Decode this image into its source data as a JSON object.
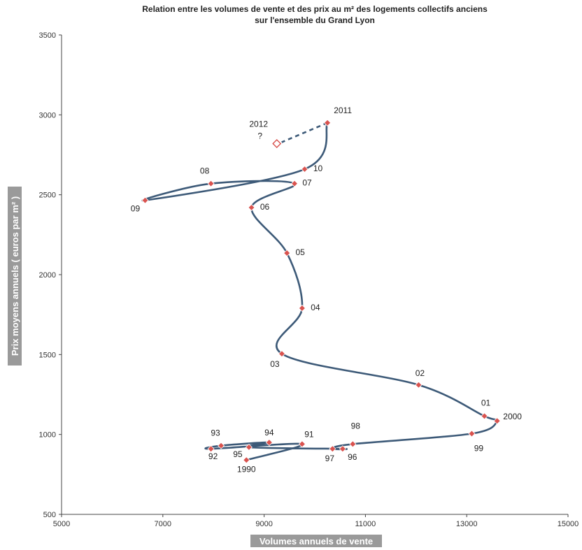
{
  "chart_data": {
    "type": "scatter",
    "title_lines": [
      "Relation entre les volumes de vente et des prix au m² des logements collectifs anciens",
      "sur l'ensemble du Grand Lyon"
    ],
    "xlabel": "Volumes annuels de vente",
    "ylabel": "Prix moyens annuels ( euros par m² )",
    "xlim": [
      5000,
      15000
    ],
    "ylim": [
      500,
      3500
    ],
    "x_ticks": [
      5000,
      7000,
      9000,
      11000,
      13000,
      15000
    ],
    "y_ticks": [
      500,
      1000,
      1500,
      2000,
      2500,
      3000,
      3500
    ],
    "grid": false,
    "series": [
      {
        "points": [
          {
            "label": "1990",
            "x": 8650,
            "y": 840
          },
          {
            "label": "91",
            "x": 9750,
            "y": 940
          },
          {
            "label": "92",
            "x": 7950,
            "y": 910
          },
          {
            "label": "93",
            "x": 8150,
            "y": 930
          },
          {
            "label": "94",
            "x": 9100,
            "y": 950
          },
          {
            "label": "95",
            "x": 8700,
            "y": 920
          },
          {
            "label": "96",
            "x": 10550,
            "y": 910
          },
          {
            "label": "97",
            "x": 10350,
            "y": 910
          },
          {
            "label": "98",
            "x": 10750,
            "y": 940
          },
          {
            "label": "99",
            "x": 13100,
            "y": 1005
          },
          {
            "label": "2000",
            "x": 13600,
            "y": 1085
          },
          {
            "label": "01",
            "x": 13350,
            "y": 1115
          },
          {
            "label": "02",
            "x": 12050,
            "y": 1310
          },
          {
            "label": "03",
            "x": 9350,
            "y": 1505
          },
          {
            "label": "04",
            "x": 9750,
            "y": 1790
          },
          {
            "label": "05",
            "x": 9450,
            "y": 2135
          },
          {
            "label": "06",
            "x": 8750,
            "y": 2420
          },
          {
            "label": "07",
            "x": 9600,
            "y": 2570
          },
          {
            "label": "08",
            "x": 7950,
            "y": 2570
          },
          {
            "label": "09",
            "x": 6650,
            "y": 2465
          },
          {
            "label": "10",
            "x": 9800,
            "y": 2660
          },
          {
            "label": "2011",
            "x": 10250,
            "y": 2950
          }
        ],
        "color": "#3d5a78",
        "marker_color": "#d9534f"
      }
    ],
    "projection": {
      "label": "2012",
      "note": "?",
      "x": 9250,
      "y": 2820,
      "style": "dashed",
      "marker": "hollow-diamond"
    }
  }
}
